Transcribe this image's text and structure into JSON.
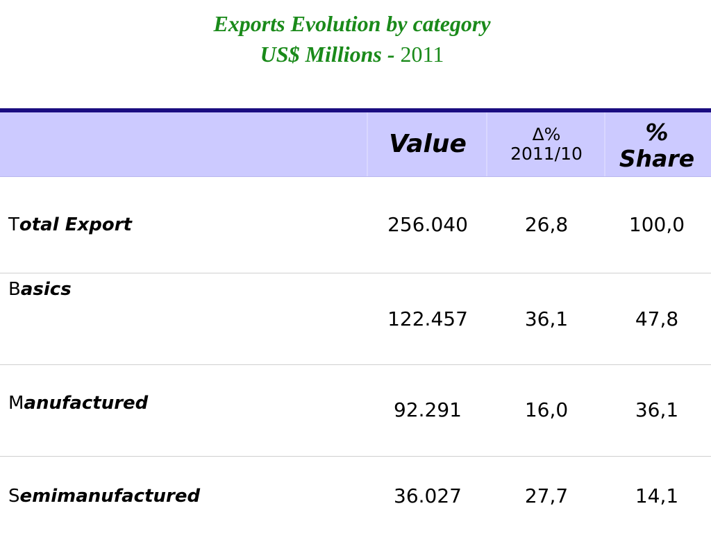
{
  "title": {
    "line1": "Exports Evolution by category",
    "unit": "US$ Millions -",
    "year": "2011"
  },
  "colors": {
    "title": "#1a8a1a",
    "header_bg": "#cccaff",
    "top_rule": "#1a0d80",
    "row_divider": "#cfcfcf"
  },
  "headers": {
    "label": "",
    "value": "Value",
    "delta_symbol": "Δ%",
    "delta_period": "2011/10",
    "share_symbol": "%",
    "share_word": "Share"
  },
  "rows": [
    {
      "initial": "T",
      "rest": "otal Export",
      "value": "256.040",
      "delta": "26,8",
      "share": "100,0"
    },
    {
      "initial": "B",
      "rest": "asics",
      "value": "122.457",
      "delta": "36,1",
      "share": "47,8"
    },
    {
      "initial": "M",
      "rest": "anufactured",
      "value": "92.291",
      "delta": "16,0",
      "share": "36,1"
    },
    {
      "initial": "S",
      "rest": "emimanufactured",
      "value": "36.027",
      "delta": "27,7",
      "share": "14,1"
    }
  ]
}
